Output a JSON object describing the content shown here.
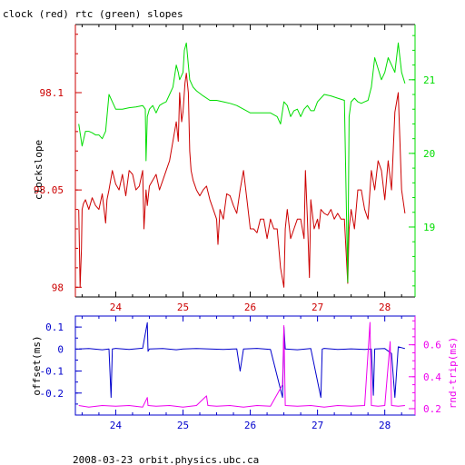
{
  "title": "clock (red) rtc (green) slopes",
  "footer": "2008-03-23 orbit.physics.ubc.ca",
  "colors": {
    "red": "#cc0000",
    "green": "#00dd00",
    "blue": "#0000cc",
    "magenta": "#ee00ee",
    "axis": "#000000"
  },
  "chart_data": [
    {
      "type": "line",
      "title": "clock (red) rtc (green) slopes",
      "xlabel": "",
      "ylabel": "clockslope",
      "xlim": [
        23.4,
        28.45
      ],
      "ylim": [
        97.995,
        98.135
      ],
      "y2lim": [
        18.05,
        21.75
      ],
      "x_ticks": [
        "24",
        "25",
        "26",
        "27",
        "28"
      ],
      "y_ticks": [
        "98",
        "98.05",
        "98.1"
      ],
      "y2_ticks": [
        "19",
        "20",
        "21"
      ],
      "grid": false,
      "series": [
        {
          "name": "clock",
          "axis": "left",
          "color": "#cc0000",
          "x": [
            23.45,
            23.47,
            23.49,
            23.5,
            23.52,
            23.55,
            23.6,
            23.65,
            23.7,
            23.75,
            23.8,
            23.85,
            23.87,
            23.9,
            23.95,
            24.0,
            24.05,
            24.1,
            24.15,
            24.2,
            24.25,
            24.3,
            24.35,
            24.4,
            24.42,
            24.45,
            24.47,
            24.5,
            24.55,
            24.6,
            24.65,
            24.7,
            24.75,
            24.8,
            24.85,
            24.9,
            24.93,
            24.95,
            24.98,
            25.0,
            25.03,
            25.05,
            25.08,
            25.1,
            25.12,
            25.15,
            25.2,
            25.25,
            25.3,
            25.35,
            25.4,
            25.45,
            25.5,
            25.52,
            25.55,
            25.6,
            25.65,
            25.7,
            25.75,
            25.8,
            25.85,
            25.9,
            25.95,
            26.0,
            26.05,
            26.1,
            26.15,
            26.2,
            26.25,
            26.3,
            26.35,
            26.4,
            26.45,
            26.5,
            26.52,
            26.55,
            26.6,
            26.65,
            26.7,
            26.75,
            26.8,
            26.82,
            26.85,
            26.88,
            26.9,
            26.95,
            27.0,
            27.02,
            27.05,
            27.1,
            27.15,
            27.2,
            27.25,
            27.3,
            27.35,
            27.4,
            27.45,
            27.47,
            27.5,
            27.55,
            27.6,
            27.65,
            27.7,
            27.75,
            27.8,
            27.85,
            27.9,
            27.95,
            28.0,
            28.05,
            28.1,
            28.15,
            28.2,
            28.25,
            28.3
          ],
          "values": [
            98.04,
            98.0,
            98.02,
            98.04,
            98.043,
            98.045,
            98.04,
            98.046,
            98.042,
            98.04,
            98.048,
            98.033,
            98.045,
            98.05,
            98.06,
            98.053,
            98.05,
            98.058,
            98.047,
            98.06,
            98.058,
            98.05,
            98.052,
            98.06,
            98.03,
            98.05,
            98.042,
            98.052,
            98.055,
            98.058,
            98.05,
            98.055,
            98.06,
            98.065,
            98.075,
            98.085,
            98.075,
            98.1,
            98.085,
            98.09,
            98.105,
            98.11,
            98.1,
            98.07,
            98.06,
            98.055,
            98.05,
            98.047,
            98.05,
            98.052,
            98.045,
            98.04,
            98.035,
            98.022,
            98.04,
            98.035,
            98.048,
            98.047,
            98.042,
            98.038,
            98.05,
            98.06,
            98.045,
            98.03,
            98.03,
            98.028,
            98.035,
            98.035,
            98.025,
            98.035,
            98.03,
            98.03,
            98.01,
            98.0,
            98.03,
            98.04,
            98.025,
            98.03,
            98.035,
            98.035,
            98.025,
            98.06,
            98.035,
            98.005,
            98.045,
            98.03,
            98.035,
            98.03,
            98.04,
            98.038,
            98.037,
            98.04,
            98.035,
            98.038,
            98.035,
            98.035,
            98.002,
            98.03,
            98.04,
            98.03,
            98.05,
            98.05,
            98.04,
            98.035,
            98.06,
            98.05,
            98.065,
            98.06,
            98.045,
            98.065,
            98.05,
            98.09,
            98.1,
            98.05,
            98.038
          ]
        },
        {
          "name": "rtc",
          "axis": "right",
          "color": "#00dd00",
          "x": [
            23.45,
            23.5,
            23.55,
            23.6,
            23.65,
            23.7,
            23.75,
            23.8,
            23.85,
            23.9,
            23.95,
            24.0,
            24.1,
            24.2,
            24.3,
            24.4,
            24.44,
            24.45,
            24.47,
            24.5,
            24.55,
            24.6,
            24.65,
            24.7,
            24.75,
            24.8,
            24.85,
            24.9,
            24.93,
            24.95,
            25.0,
            25.02,
            25.05,
            25.08,
            25.1,
            25.15,
            25.2,
            25.3,
            25.4,
            25.5,
            25.6,
            25.7,
            25.8,
            25.9,
            26.0,
            26.1,
            26.2,
            26.3,
            26.4,
            26.45,
            26.5,
            26.55,
            26.6,
            26.65,
            26.7,
            26.75,
            26.8,
            26.85,
            26.9,
            26.95,
            27.0,
            27.1,
            27.2,
            27.3,
            27.4,
            27.45,
            27.47,
            27.5,
            27.55,
            27.6,
            27.65,
            27.7,
            27.75,
            27.8,
            27.85,
            27.9,
            27.95,
            28.0,
            28.05,
            28.1,
            28.15,
            28.2,
            28.25,
            28.3
          ],
          "values": [
            20.4,
            20.1,
            20.3,
            20.3,
            20.28,
            20.25,
            20.25,
            20.2,
            20.3,
            20.8,
            20.7,
            20.6,
            20.6,
            20.62,
            20.63,
            20.65,
            20.6,
            19.9,
            20.5,
            20.6,
            20.65,
            20.55,
            20.65,
            20.68,
            20.7,
            20.8,
            20.9,
            21.2,
            21.1,
            21.0,
            21.1,
            21.4,
            21.5,
            21.2,
            21.0,
            20.9,
            20.85,
            20.78,
            20.72,
            20.72,
            20.7,
            20.68,
            20.65,
            20.6,
            20.55,
            20.55,
            20.55,
            20.55,
            20.5,
            20.4,
            20.7,
            20.65,
            20.5,
            20.58,
            20.6,
            20.5,
            20.6,
            20.65,
            20.58,
            20.58,
            20.7,
            20.8,
            20.78,
            20.75,
            20.72,
            18.25,
            20.5,
            20.7,
            20.75,
            20.7,
            20.68,
            20.7,
            20.72,
            20.9,
            21.3,
            21.15,
            21.0,
            21.1,
            21.3,
            21.2,
            21.1,
            21.5,
            21.1,
            20.95
          ]
        }
      ]
    },
    {
      "type": "line",
      "title": "",
      "xlabel": "",
      "ylabel": "offset(ms)",
      "y2label": "rnd-trip(ms)",
      "xlim": [
        23.4,
        28.45
      ],
      "ylim": [
        -0.3,
        0.15
      ],
      "y2lim": [
        0.16,
        0.78
      ],
      "x_ticks": [
        "24",
        "25",
        "26",
        "27",
        "28"
      ],
      "y_ticks": [
        "-0.2",
        "-0.1",
        "0",
        "0.1"
      ],
      "y2_ticks": [
        "0.2",
        "0.4",
        "0.6"
      ],
      "grid": false,
      "series": [
        {
          "name": "offset",
          "axis": "left",
          "color": "#0000cc",
          "x": [
            23.45,
            23.6,
            23.8,
            23.9,
            23.93,
            23.95,
            24.0,
            24.2,
            24.4,
            24.47,
            24.48,
            24.5,
            24.7,
            24.9,
            25.0,
            25.2,
            25.4,
            25.6,
            25.8,
            25.85,
            25.9,
            26.1,
            26.3,
            26.48,
            26.5,
            26.52,
            26.7,
            26.9,
            27.05,
            27.07,
            27.1,
            27.3,
            27.5,
            27.7,
            27.8,
            27.83,
            27.85,
            28.0,
            28.1,
            28.15,
            28.2,
            28.3
          ],
          "values": [
            0.0,
            0.002,
            -0.003,
            0.0,
            -0.22,
            0.0,
            0.003,
            -0.002,
            0.004,
            0.12,
            -0.01,
            0.0,
            0.002,
            -0.003,
            0.0,
            0.002,
            0.0,
            -0.002,
            0.001,
            -0.1,
            0.0,
            0.003,
            -0.002,
            -0.22,
            0.1,
            0.0,
            -0.003,
            0.002,
            -0.22,
            0.0,
            0.003,
            -0.002,
            0.001,
            -0.002,
            0.0,
            -0.21,
            0.0,
            0.002,
            -0.02,
            -0.22,
            0.01,
            0.002
          ]
        },
        {
          "name": "rnd-trip",
          "axis": "right",
          "color": "#ee00ee",
          "x": [
            23.45,
            23.6,
            23.8,
            24.0,
            24.2,
            24.4,
            24.47,
            24.48,
            24.6,
            24.8,
            25.0,
            25.2,
            25.35,
            25.37,
            25.5,
            25.7,
            25.9,
            26.1,
            26.3,
            26.48,
            26.5,
            26.52,
            26.7,
            26.9,
            27.1,
            27.3,
            27.5,
            27.7,
            27.78,
            27.8,
            27.9,
            28.0,
            28.08,
            28.1,
            28.2,
            28.3
          ],
          "values": [
            0.22,
            0.21,
            0.22,
            0.215,
            0.22,
            0.21,
            0.27,
            0.22,
            0.215,
            0.22,
            0.21,
            0.22,
            0.28,
            0.22,
            0.215,
            0.22,
            0.21,
            0.22,
            0.215,
            0.35,
            0.72,
            0.22,
            0.215,
            0.22,
            0.21,
            0.22,
            0.215,
            0.22,
            0.74,
            0.22,
            0.215,
            0.22,
            0.62,
            0.22,
            0.215,
            0.22
          ]
        }
      ]
    }
  ]
}
